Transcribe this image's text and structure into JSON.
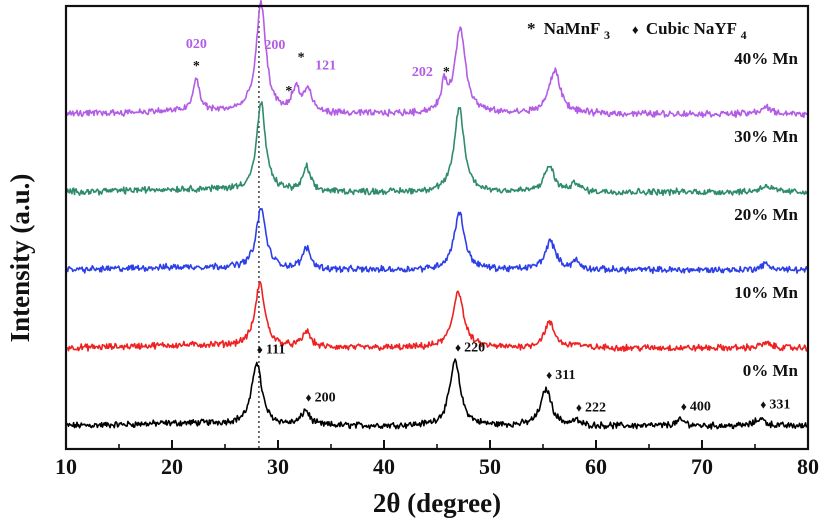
{
  "chart_data": {
    "type": "line",
    "xlabel": "2θ (degree)",
    "ylabel": "Intensity (a.u.)",
    "xlim": [
      10,
      80
    ],
    "x_ticks": [
      "10",
      "20",
      "30",
      "40",
      "50",
      "60",
      "70",
      "80"
    ],
    "grid": false,
    "reference_line_x": 28.2,
    "legend": {
      "position": "top-right",
      "items": [
        {
          "marker": "*",
          "text": "NaMnF",
          "sub": "3"
        },
        {
          "marker": "♦",
          "text": "Cubic NaYF",
          "sub": "4"
        }
      ]
    },
    "series": [
      {
        "name": "0% Mn",
        "color": "#000000",
        "baseline": 0.0,
        "peaks": [
          [
            28.0,
            0.68,
            0.55
          ],
          [
            32.6,
            0.16,
            0.45
          ],
          [
            46.7,
            0.7,
            0.6
          ],
          [
            55.3,
            0.4,
            0.6
          ],
          [
            58.1,
            0.05,
            0.4
          ],
          [
            68.0,
            0.06,
            0.55
          ],
          [
            75.5,
            0.08,
            0.55
          ]
        ]
      },
      {
        "name": "10% Mn",
        "color": "#ee2222",
        "baseline": 1.0,
        "peaks": [
          [
            28.3,
            0.68,
            0.55
          ],
          [
            32.7,
            0.17,
            0.45
          ],
          [
            47.0,
            0.62,
            0.6
          ],
          [
            55.6,
            0.27,
            0.6
          ],
          [
            58.1,
            0.04,
            0.4
          ],
          [
            76.0,
            0.05,
            0.6
          ]
        ]
      },
      {
        "name": "20% Mn",
        "color": "#2d3fe6",
        "baseline": 2.0,
        "peaks": [
          [
            28.4,
            0.65,
            0.55
          ],
          [
            32.7,
            0.23,
            0.45
          ],
          [
            47.1,
            0.62,
            0.6
          ],
          [
            55.7,
            0.31,
            0.6
          ],
          [
            58.1,
            0.09,
            0.4
          ],
          [
            76.0,
            0.06,
            0.6
          ]
        ]
      },
      {
        "name": "30% Mn",
        "color": "#2e8b6e",
        "baseline": 3.0,
        "peaks": [
          [
            28.4,
            0.95,
            0.5
          ],
          [
            32.7,
            0.26,
            0.4
          ],
          [
            47.1,
            0.92,
            0.55
          ],
          [
            55.6,
            0.28,
            0.55
          ],
          [
            58.1,
            0.1,
            0.4
          ],
          [
            76.0,
            0.07,
            0.6
          ]
        ]
      },
      {
        "name": "40% Mn",
        "color": "#b35ce6",
        "baseline": 4.0,
        "peaks": [
          [
            22.3,
            0.35,
            0.35
          ],
          [
            28.4,
            1.18,
            0.55
          ],
          [
            31.4,
            0.1,
            0.35
          ],
          [
            31.8,
            0.2,
            0.3
          ],
          [
            32.8,
            0.25,
            0.45
          ],
          [
            45.7,
            0.28,
            0.35
          ],
          [
            47.2,
            0.92,
            0.6
          ],
          [
            56.1,
            0.47,
            0.65
          ],
          [
            76.0,
            0.07,
            0.6
          ]
        ]
      }
    ],
    "annotations": {
      "cubic": [
        {
          "x": 28.0,
          "label": "111"
        },
        {
          "x": 32.6,
          "label": "200"
        },
        {
          "x": 46.7,
          "label": "220"
        },
        {
          "x": 55.3,
          "label": "311"
        },
        {
          "x": 58.1,
          "label": "222"
        },
        {
          "x": 68.0,
          "label": "400"
        },
        {
          "x": 75.5,
          "label": "331"
        }
      ],
      "namnf3": [
        {
          "x": 22.3,
          "label": "020"
        },
        {
          "x": 31.4,
          "label": "200"
        },
        {
          "x": 31.8,
          "label": "121"
        },
        {
          "x": 45.7,
          "label": "202"
        }
      ]
    }
  },
  "colors": {
    "axis": "#111111",
    "namnf3_label": "#b35ce6",
    "background": "#ffffff"
  }
}
